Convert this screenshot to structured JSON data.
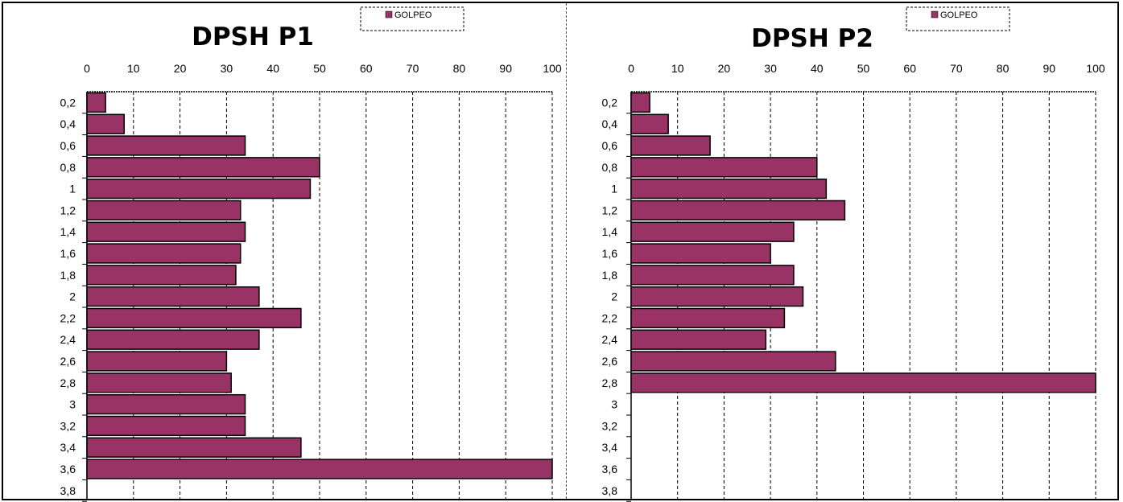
{
  "colors": {
    "bar": "#993366",
    "bar_stroke": "#000000",
    "grid": "#000000"
  },
  "chart_data": [
    {
      "type": "bar",
      "orientation": "horizontal",
      "title": "DPSH P1",
      "legend": {
        "labels": [
          "GOLPEO"
        ],
        "placement": "top-center"
      },
      "xlim": [
        0,
        100
      ],
      "xticks": [
        "0",
        "10",
        "20",
        "30",
        "40",
        "50",
        "60",
        "70",
        "80",
        "90",
        "100"
      ],
      "categories": [
        "0,2",
        "0,4",
        "0,6",
        "0,8",
        "1",
        "1,2",
        "1,4",
        "1,6",
        "1,8",
        "2",
        "2,2",
        "2,4",
        "2,6",
        "2,8",
        "3",
        "3,2",
        "3,4",
        "3,6",
        "3,8"
      ],
      "series": [
        {
          "name": "GOLPEO",
          "values": [
            4,
            8,
            34,
            50,
            48,
            33,
            34,
            33,
            32,
            37,
            46,
            37,
            30,
            31,
            34,
            34,
            46,
            100,
            null
          ]
        }
      ],
      "grid": true
    },
    {
      "type": "bar",
      "orientation": "horizontal",
      "title": "DPSH P2",
      "legend": {
        "labels": [
          "GOLPEO"
        ],
        "placement": "top-center"
      },
      "xlim": [
        0,
        100
      ],
      "xticks": [
        "0",
        "10",
        "20",
        "30",
        "40",
        "50",
        "60",
        "70",
        "80",
        "90",
        "100"
      ],
      "categories": [
        "0,2",
        "0,4",
        "0,6",
        "0,8",
        "1",
        "1,2",
        "1,4",
        "1,6",
        "1,8",
        "2",
        "2,2",
        "2,4",
        "2,6",
        "2,8",
        "3",
        "3,2",
        "3,4",
        "3,6",
        "3,8"
      ],
      "series": [
        {
          "name": "GOLPEO",
          "values": [
            4,
            8,
            17,
            40,
            42,
            46,
            35,
            30,
            35,
            37,
            33,
            29,
            44,
            100,
            null,
            null,
            null,
            null,
            null
          ]
        }
      ],
      "grid": true
    }
  ]
}
